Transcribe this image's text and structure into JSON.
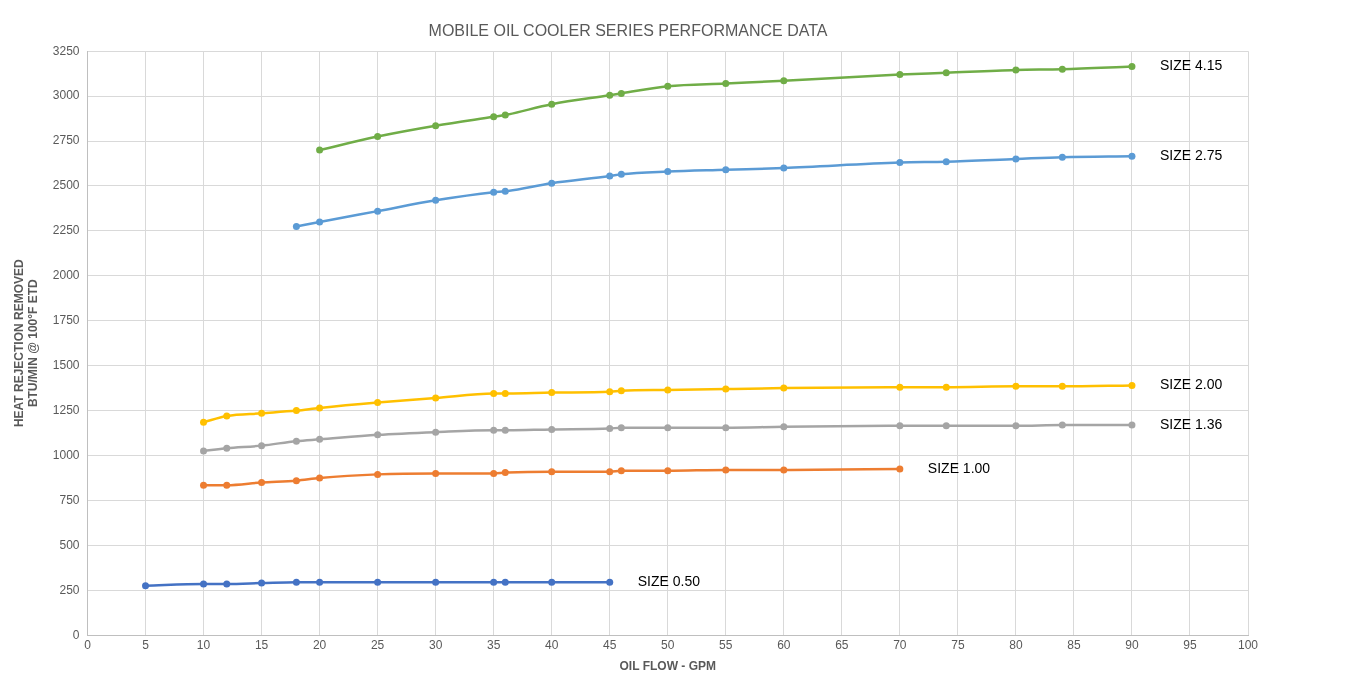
{
  "chart_data": {
    "type": "line",
    "title": "MOBILE OIL COOLER SERIES PERFORMANCE DATA",
    "xlabel": "OIL FLOW - GPM",
    "ylabel": "HEAT REJECTION REMOVED\nBTU/MIN @ 100°F ETD",
    "xlim": [
      0,
      100
    ],
    "xticks": [
      0,
      5,
      10,
      15,
      20,
      25,
      30,
      35,
      40,
      45,
      50,
      55,
      60,
      65,
      70,
      75,
      80,
      85,
      90,
      95,
      100
    ],
    "ylim": [
      0,
      3250
    ],
    "yticks": [
      0,
      250,
      500,
      750,
      1000,
      1250,
      1500,
      1750,
      2000,
      2250,
      2500,
      2750,
      3000,
      3250
    ],
    "grid": true,
    "legend": false,
    "marker": "circle",
    "line_style": "solid",
    "series": [
      {
        "name": "SIZE 4.15",
        "color": "#70ad47",
        "x": [
          20,
          25,
          30,
          35,
          36,
          40,
          45,
          46,
          50,
          55,
          60,
          70,
          74,
          80,
          84,
          90
        ],
        "values": [
          2700,
          2775,
          2835,
          2885,
          2895,
          2955,
          3005,
          3015,
          3055,
          3070,
          3085,
          3120,
          3130,
          3145,
          3150,
          3165
        ]
      },
      {
        "name": "SIZE 2.75",
        "color": "#5b9bd5",
        "x": [
          18,
          20,
          25,
          30,
          35,
          36,
          40,
          45,
          46,
          50,
          55,
          60,
          70,
          74,
          80,
          84,
          90
        ],
        "values": [
          2275,
          2300,
          2360,
          2420,
          2465,
          2470,
          2515,
          2555,
          2565,
          2580,
          2590,
          2600,
          2630,
          2635,
          2650,
          2660,
          2665
        ]
      },
      {
        "name": "SIZE 2.00",
        "color": "#ffc000",
        "x": [
          10,
          12,
          15,
          18,
          20,
          25,
          30,
          35,
          36,
          40,
          45,
          46,
          50,
          55,
          60,
          70,
          74,
          80,
          84,
          90
        ],
        "values": [
          1185,
          1220,
          1235,
          1250,
          1265,
          1295,
          1320,
          1345,
          1345,
          1350,
          1355,
          1360,
          1365,
          1370,
          1375,
          1380,
          1380,
          1385,
          1385,
          1390
        ]
      },
      {
        "name": "SIZE 1.36",
        "color": "#a5a5a5",
        "x": [
          10,
          12,
          15,
          18,
          20,
          25,
          30,
          35,
          36,
          40,
          45,
          46,
          50,
          55,
          60,
          70,
          74,
          80,
          84,
          90
        ],
        "values": [
          1025,
          1040,
          1055,
          1080,
          1090,
          1115,
          1130,
          1140,
          1140,
          1145,
          1150,
          1155,
          1155,
          1155,
          1160,
          1165,
          1165,
          1165,
          1170,
          1170
        ]
      },
      {
        "name": "SIZE 1.00",
        "color": "#ed7d31",
        "x": [
          10,
          12,
          15,
          18,
          20,
          25,
          30,
          35,
          36,
          40,
          45,
          46,
          50,
          55,
          60,
          70
        ],
        "values": [
          835,
          835,
          850,
          860,
          875,
          895,
          900,
          900,
          905,
          910,
          910,
          915,
          915,
          920,
          920,
          925
        ]
      },
      {
        "name": "SIZE 0.50",
        "color": "#4472c4",
        "x": [
          5,
          10,
          12,
          15,
          18,
          20,
          25,
          30,
          35,
          36,
          40,
          45
        ],
        "values": [
          275,
          285,
          285,
          290,
          295,
          295,
          295,
          295,
          295,
          295,
          295,
          295
        ]
      }
    ]
  }
}
